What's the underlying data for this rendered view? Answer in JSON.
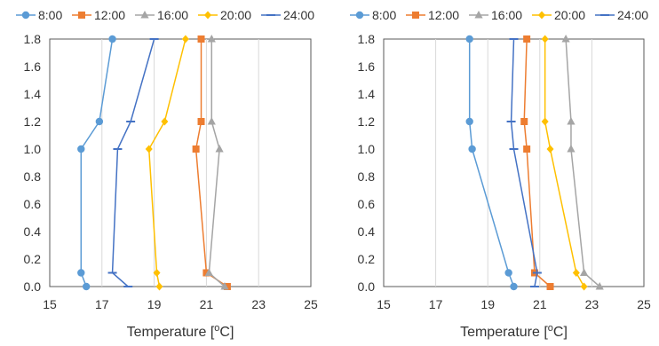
{
  "colors": {
    "8:00": "#5B9BD5",
    "12:00": "#ED7D31",
    "16:00": "#A5A5A5",
    "20:00": "#FFC000",
    "24:00": "#4472C4",
    "axis": "#595959",
    "grid": "#D9D9D9"
  },
  "chart_data": [
    {
      "type": "line",
      "title": "",
      "xlabel": "Temperature [",
      "xlabel_sup": "o",
      "xlabel_end": "C]",
      "ylabel": "",
      "xlim": [
        15,
        25
      ],
      "ylim": [
        0.0,
        1.8
      ],
      "xticks": [
        "15",
        "17",
        "19",
        "21",
        "23",
        "25"
      ],
      "yticks": [
        "0.0",
        "0.2",
        "0.4",
        "0.6",
        "0.8",
        "1.0",
        "1.2",
        "1.4",
        "1.6",
        "1.8"
      ],
      "grid": "vertical",
      "legend": "top",
      "y": [
        0.0,
        0.1,
        1.0,
        1.2,
        1.8
      ],
      "series": [
        {
          "name": "8:00",
          "marker": "circle",
          "x": [
            16.4,
            16.2,
            16.2,
            16.9,
            17.4
          ]
        },
        {
          "name": "12:00",
          "marker": "square",
          "x": [
            21.8,
            21.0,
            20.6,
            20.8,
            20.8
          ]
        },
        {
          "name": "16:00",
          "marker": "triangle",
          "x": [
            21.7,
            21.1,
            21.5,
            21.2,
            21.2
          ]
        },
        {
          "name": "20:00",
          "marker": "diamond",
          "x": [
            19.2,
            19.1,
            18.8,
            19.4,
            20.2
          ]
        },
        {
          "name": "24:00",
          "marker": "dash",
          "x": [
            18.0,
            17.4,
            17.6,
            18.1,
            19.0
          ]
        }
      ]
    },
    {
      "type": "line",
      "title": "",
      "xlabel": "Temperature [",
      "xlabel_sup": "o",
      "xlabel_end": "C]",
      "ylabel": "",
      "xlim": [
        15,
        25
      ],
      "ylim": [
        0.0,
        1.8
      ],
      "xticks": [
        "15",
        "17",
        "19",
        "21",
        "23",
        "25"
      ],
      "yticks": [
        "0.0",
        "0.2",
        "0.4",
        "0.6",
        "0.8",
        "1.0",
        "1.2",
        "1.4",
        "1.6",
        "1.8"
      ],
      "grid": "vertical",
      "legend": "top",
      "y": [
        0.0,
        0.1,
        1.0,
        1.2,
        1.8
      ],
      "series": [
        {
          "name": "8:00",
          "marker": "circle",
          "x": [
            20.0,
            19.8,
            18.4,
            18.3,
            18.3
          ]
        },
        {
          "name": "12:00",
          "marker": "square",
          "x": [
            21.4,
            20.8,
            20.5,
            20.4,
            20.5
          ]
        },
        {
          "name": "16:00",
          "marker": "triangle",
          "x": [
            23.3,
            22.7,
            22.2,
            22.2,
            22.0
          ]
        },
        {
          "name": "20:00",
          "marker": "diamond",
          "x": [
            22.7,
            22.4,
            21.4,
            21.2,
            21.2
          ]
        },
        {
          "name": "24:00",
          "marker": "dash",
          "x": [
            20.8,
            20.9,
            20.0,
            19.9,
            20.0
          ]
        }
      ]
    }
  ]
}
